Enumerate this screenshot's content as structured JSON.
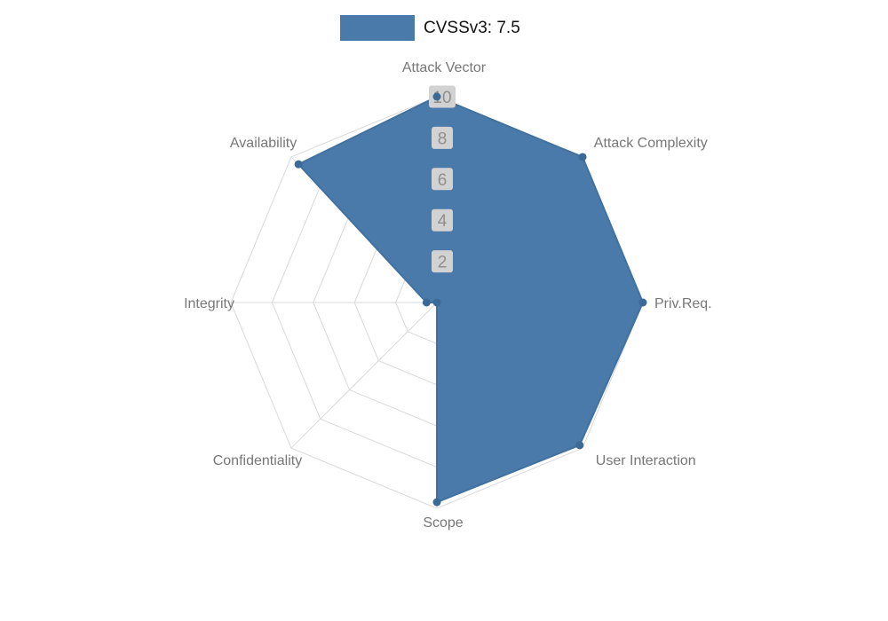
{
  "chart_data": {
    "type": "radar",
    "title": "",
    "legend": {
      "label": "CVSSv3: 7.5",
      "color": "#4a7aa9",
      "position": "top"
    },
    "categories": [
      "Attack Vector",
      "Attack Complexity",
      "Priv.Req.",
      "User Interaction",
      "Scope",
      "Confidentiality",
      "Integrity",
      "Availability"
    ],
    "series": [
      {
        "name": "CVSSv3: 7.5",
        "values": [
          10,
          10,
          10,
          9.8,
          9.7,
          0,
          0.5,
          9.5
        ]
      }
    ],
    "radial_ticks": [
      2,
      4,
      6,
      8,
      10
    ],
    "range": [
      0,
      10
    ],
    "grid": true,
    "angular_start": "top",
    "direction": "clockwise"
  },
  "colors": {
    "series_fill": "#4a7aa9",
    "series_stroke": "#40719f",
    "marker": "#3c6a96",
    "grid": "#d9d9d9",
    "tick_bg": "#d2d2d2",
    "tick_text": "#8f8f8f",
    "axis_label": "#777777",
    "legend_text": "#111111",
    "background": "#ffffff"
  }
}
